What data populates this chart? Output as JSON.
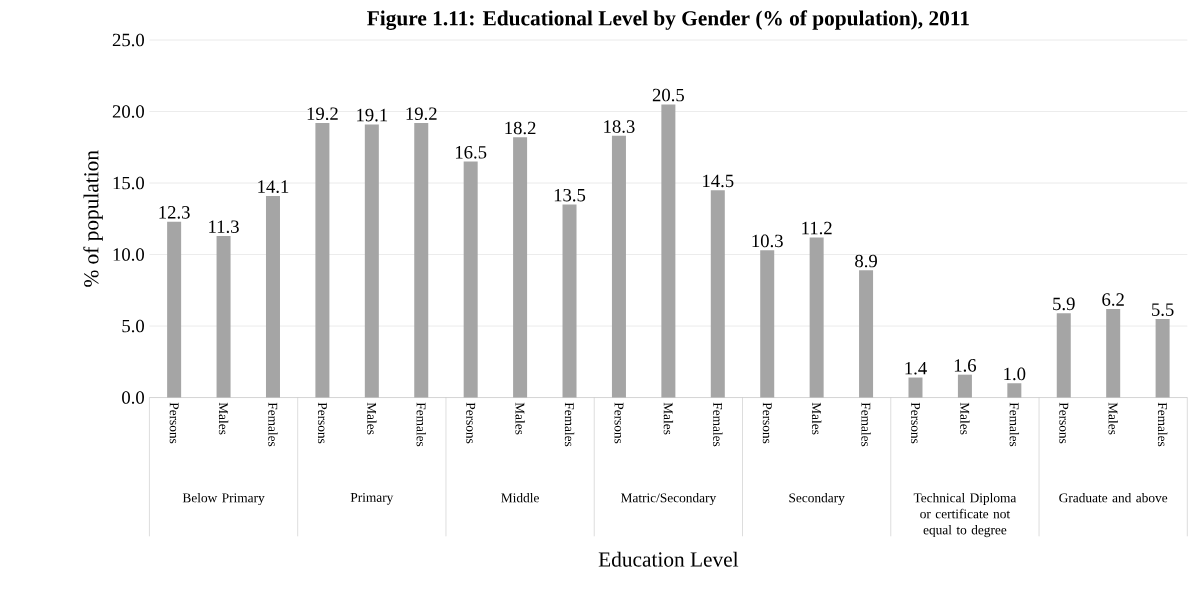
{
  "chart_data": {
    "type": "bar",
    "title": "Figure 1.11: Educational Level by Gender (% of population), 2011",
    "xlabel": "Education Level",
    "ylabel": "% of population",
    "categories": [
      "Persons",
      "Males",
      "Females",
      "Persons",
      "Males",
      "Females",
      "Persons",
      "Males",
      "Females",
      "Persons",
      "Males",
      "Females",
      "Persons",
      "Males",
      "Females",
      "Persons",
      "Males",
      "Females",
      "Persons",
      "Males",
      "Females"
    ],
    "values": [
      12.3,
      11.3,
      14.1,
      19.2,
      19.1,
      19.2,
      16.5,
      18.2,
      13.5,
      18.3,
      20.5,
      14.5,
      10.3,
      11.2,
      8.9,
      1.4,
      1.6,
      1.0,
      5.9,
      6.2,
      5.5
    ],
    "color": "#a5a5a5",
    "annotations": [
      "Below Primary",
      "Primary",
      "Middle",
      "Matric/Secondary",
      "Secondary",
      "Technical Diploma or certificate not equal to degree",
      "Graduate and above"
    ],
    "ylim": [
      0,
      25
    ],
    "yticks": [
      {
        "value": 0,
        "label": "0.0"
      },
      {
        "value": 5,
        "label": "5.0"
      },
      {
        "value": 10,
        "label": "10.0"
      },
      {
        "value": 15,
        "label": "15.0"
      },
      {
        "value": 20,
        "label": "20.0"
      },
      {
        "value": 25,
        "label": "25.0"
      }
    ],
    "value_labels": [
      "12.3",
      "11.3",
      "14.1",
      "19.2",
      "19.1",
      "19.2",
      "16.5",
      "18.2",
      "13.5",
      "18.3",
      "20.5",
      "14.5",
      "10.3",
      "11.2",
      "8.9",
      "1.4",
      "1.6",
      "1.0",
      "5.9",
      "6.2",
      "5.5"
    ],
    "grid": "y"
  }
}
